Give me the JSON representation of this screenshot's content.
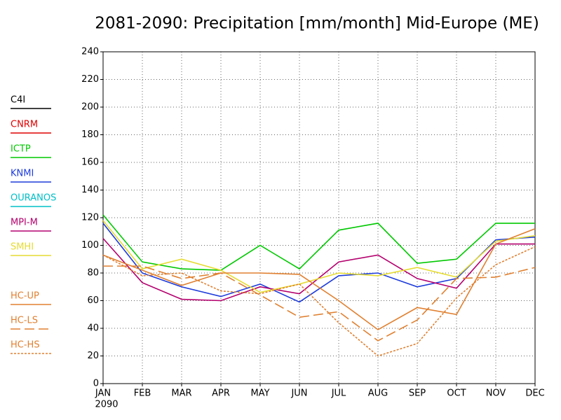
{
  "chart_data": {
    "type": "line",
    "title": "2081-2090: Precipitation [mm/month] Mid-Europe (ME)",
    "categories": [
      "JAN",
      "FEB",
      "MAR",
      "APR",
      "MAY",
      "JUN",
      "JUL",
      "AUG",
      "SEP",
      "OCT",
      "NOV",
      "DEC"
    ],
    "year_label": "2090",
    "ylim": [
      0,
      240
    ],
    "yticks": [
      0,
      20,
      40,
      60,
      80,
      100,
      120,
      140,
      160,
      180,
      200,
      220,
      240
    ],
    "grid": true,
    "legend": "left",
    "series": [
      {
        "name": "C4I",
        "color": "#000000",
        "dash": "solid",
        "values": [
          null,
          null,
          null,
          null,
          null,
          null,
          null,
          null,
          null,
          null,
          null,
          null
        ]
      },
      {
        "name": "CNRM",
        "color": "#e00000",
        "dash": "solid",
        "values": [
          null,
          null,
          null,
          null,
          null,
          null,
          null,
          null,
          null,
          null,
          null,
          null
        ]
      },
      {
        "name": "ICTP",
        "color": "#00c800",
        "dash": "solid",
        "values": [
          122,
          88,
          83,
          82,
          100,
          83,
          111,
          116,
          87,
          90,
          116,
          116
        ]
      },
      {
        "name": "KNMI",
        "color": "#1e3cdc",
        "dash": "solid",
        "values": [
          116,
          80,
          70,
          63,
          72,
          59,
          78,
          80,
          70,
          76,
          104,
          106
        ]
      },
      {
        "name": "OURANOS",
        "color": "#00c0c8",
        "dash": "solid",
        "values": [
          null,
          null,
          null,
          null,
          null,
          null,
          null,
          null,
          null,
          null,
          null,
          null
        ]
      },
      {
        "name": "MPI-M",
        "color": "#b4006e",
        "dash": "solid",
        "values": [
          105,
          73,
          61,
          60,
          70,
          65,
          88,
          93,
          76,
          69,
          101,
          101
        ]
      },
      {
        "name": "SMHI",
        "color": "#e6dc32",
        "dash": "solid",
        "values": [
          118,
          83,
          90,
          82,
          66,
          72,
          80,
          78,
          84,
          77,
          103,
          107
        ]
      },
      {
        "name": "HC-UP",
        "color": "#e08030",
        "dash": "solid",
        "values": [
          93,
          82,
          71,
          80,
          80,
          79,
          60,
          39,
          55,
          50,
          101,
          112
        ]
      },
      {
        "name": "HC-LS",
        "color": "#e08030",
        "dash": "long",
        "values": [
          85,
          85,
          76,
          80,
          64,
          48,
          52,
          31,
          46,
          76,
          77,
          84
        ]
      },
      {
        "name": "HC-HS",
        "color": "#e08030",
        "dash": "short",
        "values": [
          93,
          78,
          80,
          67,
          65,
          72,
          44,
          20,
          29,
          62,
          86,
          99
        ]
      }
    ]
  }
}
